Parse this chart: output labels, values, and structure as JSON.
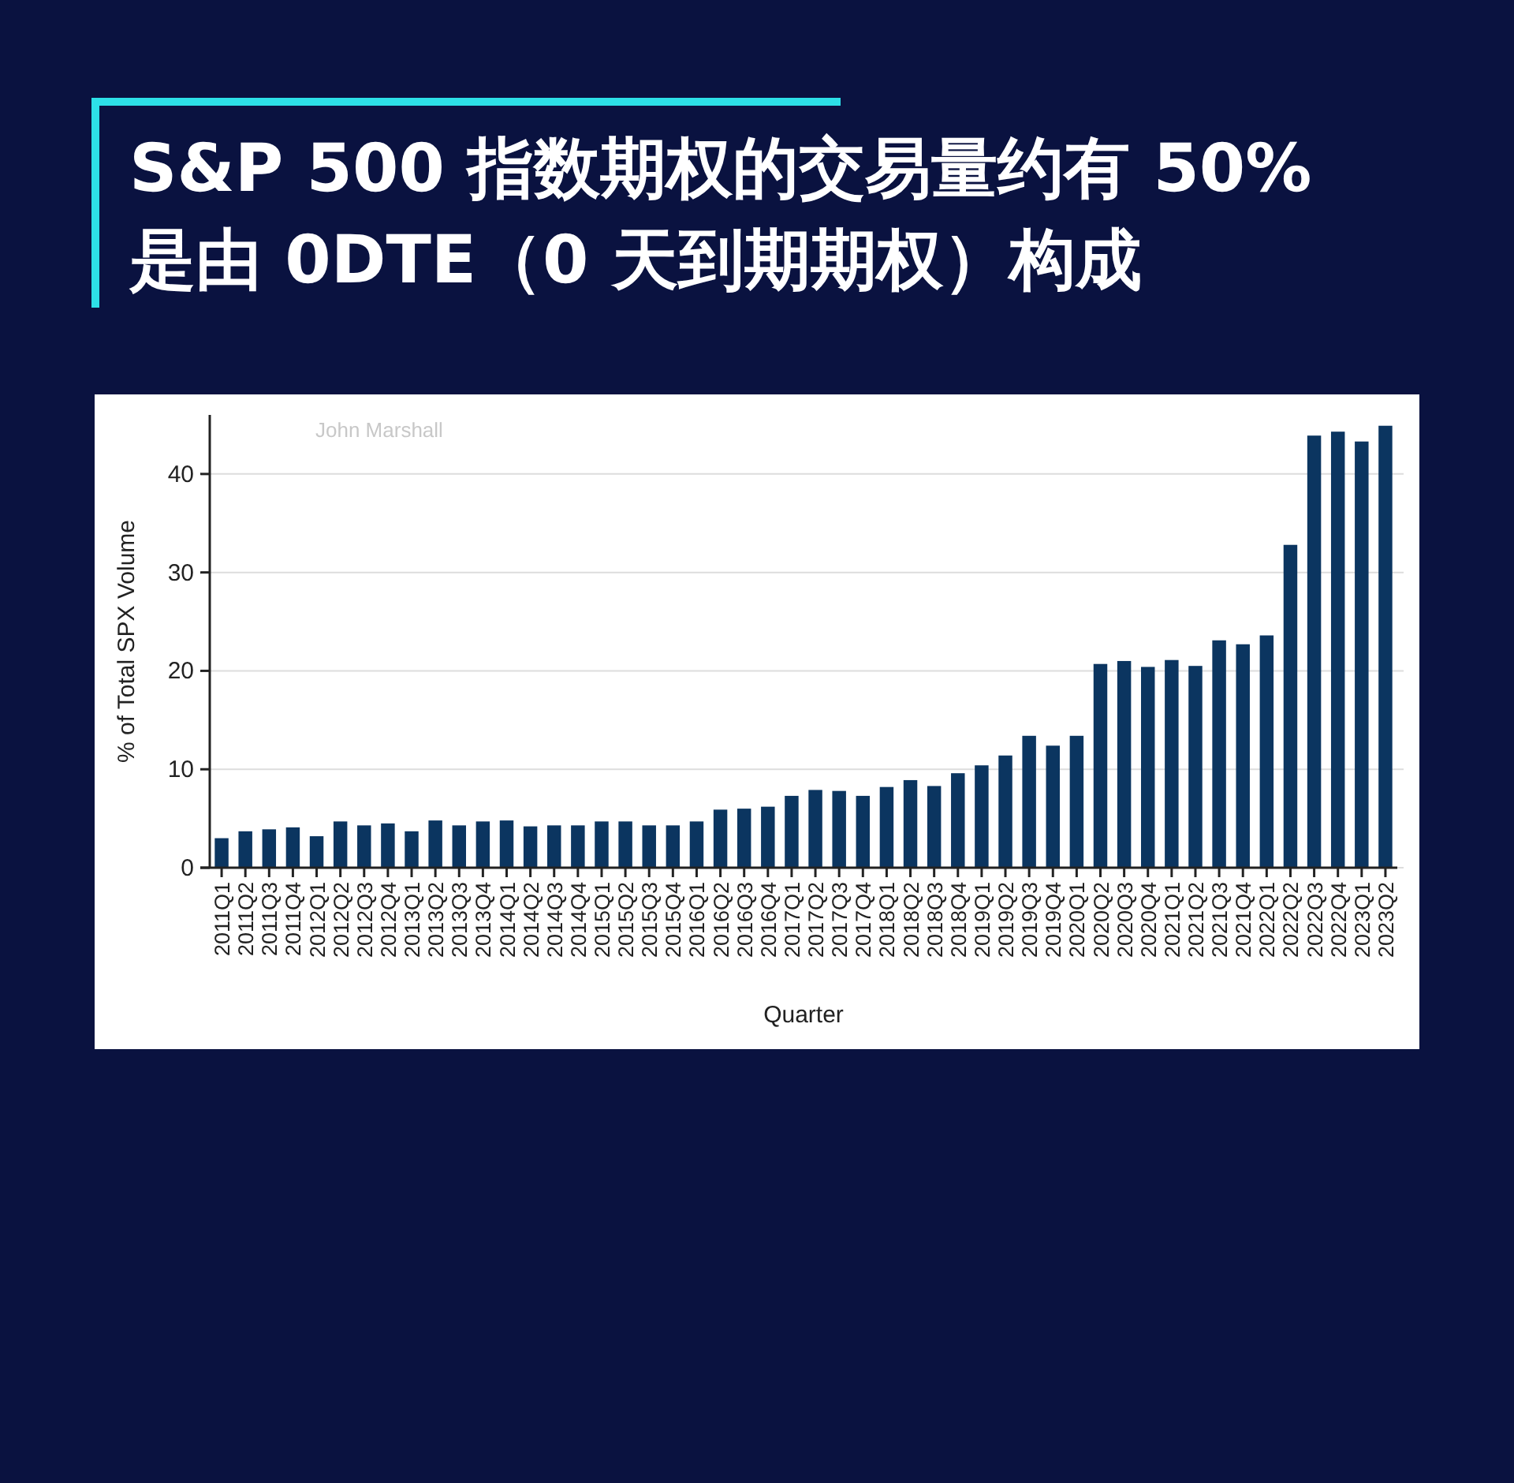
{
  "chart_data": {
    "type": "bar",
    "title": "S&P 500 指数期权的交易量约有 50% 是由 0DTE（0 天到期期权）构成",
    "xlabel": "Quarter",
    "ylabel": "% of Total SPX Volume",
    "annotations": [
      "John Marshall"
    ],
    "categories": [
      "2011Q1",
      "2011Q2",
      "2011Q3",
      "2011Q4",
      "2012Q1",
      "2012Q2",
      "2012Q3",
      "2012Q4",
      "2013Q1",
      "2013Q2",
      "2013Q3",
      "2013Q4",
      "2014Q1",
      "2014Q2",
      "2014Q3",
      "2014Q4",
      "2015Q1",
      "2015Q2",
      "2015Q3",
      "2015Q4",
      "2016Q1",
      "2016Q2",
      "2016Q3",
      "2016Q4",
      "2017Q1",
      "2017Q2",
      "2017Q3",
      "2017Q4",
      "2018Q1",
      "2018Q2",
      "2018Q3",
      "2018Q4",
      "2019Q1",
      "2019Q2",
      "2019Q3",
      "2019Q4",
      "2020Q1",
      "2020Q2",
      "2020Q3",
      "2020Q4",
      "2021Q1",
      "2021Q2",
      "2021Q3",
      "2021Q4",
      "2022Q1",
      "2022Q2",
      "2022Q3",
      "2022Q4",
      "2023Q1",
      "2023Q2"
    ],
    "values": [
      3.0,
      3.7,
      3.9,
      4.1,
      3.2,
      4.7,
      4.3,
      4.5,
      3.7,
      4.8,
      4.3,
      4.7,
      4.8,
      4.2,
      4.3,
      4.3,
      4.7,
      4.7,
      4.3,
      4.3,
      4.7,
      5.9,
      6.0,
      6.2,
      7.3,
      7.9,
      7.8,
      7.3,
      8.2,
      8.9,
      8.3,
      9.6,
      10.4,
      11.4,
      13.4,
      12.4,
      13.4,
      20.7,
      21.0,
      20.4,
      21.1,
      20.5,
      23.1,
      22.7,
      23.6,
      32.8,
      43.9,
      44.3,
      43.3,
      44.9
    ],
    "color": "#0b3560",
    "ylim": [
      0,
      46
    ],
    "yticks": [
      0,
      10,
      20,
      30,
      40
    ],
    "grid": "y"
  }
}
